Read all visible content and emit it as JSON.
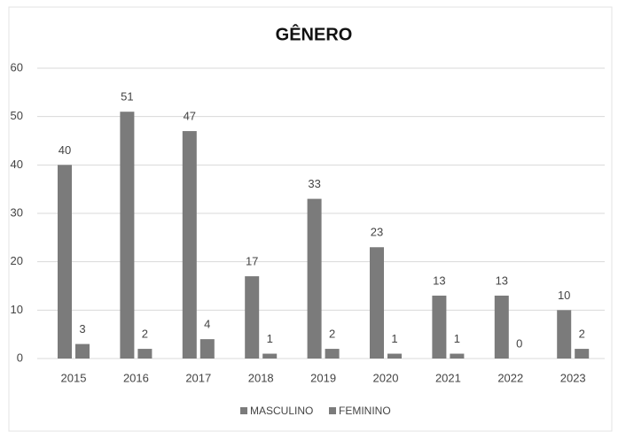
{
  "chart_data": {
    "type": "bar",
    "title": "GÊNERO",
    "categories": [
      "2015",
      "2016",
      "2017",
      "2018",
      "2019",
      "2020",
      "2021",
      "2022",
      "2023"
    ],
    "series": [
      {
        "name": "MASCULINO",
        "color": "#7b7b7b",
        "values": [
          40,
          51,
          47,
          17,
          33,
          23,
          13,
          13,
          10
        ]
      },
      {
        "name": "FEMININO",
        "color": "#7b7b7b",
        "values": [
          3,
          2,
          4,
          1,
          2,
          1,
          1,
          0,
          2
        ]
      }
    ],
    "ylim": [
      0,
      60
    ],
    "yticks": [
      0,
      10,
      20,
      30,
      40,
      50,
      60
    ],
    "grid": true,
    "legend": "bottom"
  }
}
